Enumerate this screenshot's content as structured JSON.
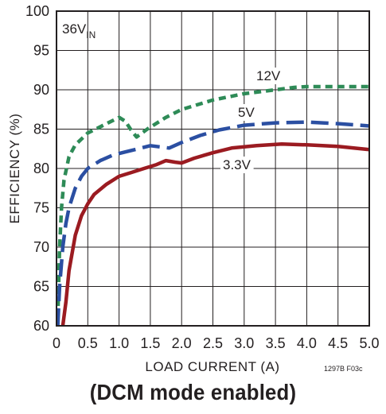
{
  "chart_data": {
    "type": "line",
    "title": "",
    "xlabel": "LOAD CURRENT (A)",
    "ylabel": "EFFICIENCY (%)",
    "xlim": [
      0,
      5.0
    ],
    "ylim": [
      60,
      100
    ],
    "xticks": [
      "0",
      "0.5",
      "1.0",
      "1.5",
      "2.0",
      "2.5",
      "3.0",
      "3.5",
      "4.0",
      "4.5",
      "5.0"
    ],
    "yticks": [
      "60",
      "65",
      "70",
      "75",
      "80",
      "85",
      "90",
      "95",
      "100"
    ],
    "grid": true,
    "annotation": {
      "main": "36V",
      "sub": "IN"
    },
    "figure_code": "1297B F03c",
    "series": [
      {
        "name": "12V",
        "color": "#2e8b57",
        "dash": "short",
        "points": [
          [
            0.02,
            61
          ],
          [
            0.05,
            70
          ],
          [
            0.08,
            75
          ],
          [
            0.12,
            78.5
          ],
          [
            0.2,
            81.5
          ],
          [
            0.3,
            83
          ],
          [
            0.5,
            84.5
          ],
          [
            0.75,
            85.5
          ],
          [
            1.0,
            86.5
          ],
          [
            1.1,
            86
          ],
          [
            1.2,
            84.8
          ],
          [
            1.28,
            84
          ],
          [
            1.45,
            85
          ],
          [
            1.75,
            86.5
          ],
          [
            2.0,
            87.5
          ],
          [
            2.5,
            88.7
          ],
          [
            3.0,
            89.5
          ],
          [
            3.5,
            90
          ],
          [
            3.8,
            90.3
          ],
          [
            4.0,
            90.4
          ],
          [
            4.5,
            90.4
          ],
          [
            5.0,
            90.4
          ]
        ]
      },
      {
        "name": "5V",
        "color": "#2b4fa2",
        "dash": "long",
        "points": [
          [
            0.02,
            60
          ],
          [
            0.05,
            65
          ],
          [
            0.1,
            70
          ],
          [
            0.15,
            73
          ],
          [
            0.2,
            75
          ],
          [
            0.3,
            77.5
          ],
          [
            0.4,
            79
          ],
          [
            0.5,
            80
          ],
          [
            0.7,
            81
          ],
          [
            0.9,
            81.7
          ],
          [
            1.1,
            82.1
          ],
          [
            1.3,
            82.5
          ],
          [
            1.5,
            82.9
          ],
          [
            1.7,
            82.7
          ],
          [
            1.8,
            82.6
          ],
          [
            2.0,
            83.3
          ],
          [
            2.3,
            84.2
          ],
          [
            2.6,
            84.9
          ],
          [
            3.0,
            85.5
          ],
          [
            3.5,
            85.8
          ],
          [
            4.0,
            85.9
          ],
          [
            4.5,
            85.7
          ],
          [
            5.0,
            85.4
          ]
        ]
      },
      {
        "name": "3.3V",
        "color": "#9b1b21",
        "dash": "solid",
        "points": [
          [
            0.1,
            60
          ],
          [
            0.15,
            63
          ],
          [
            0.2,
            67
          ],
          [
            0.3,
            71.5
          ],
          [
            0.4,
            74
          ],
          [
            0.5,
            75.5
          ],
          [
            0.6,
            76.7
          ],
          [
            0.8,
            78
          ],
          [
            1.0,
            79
          ],
          [
            1.2,
            79.5
          ],
          [
            1.4,
            80
          ],
          [
            1.6,
            80.5
          ],
          [
            1.75,
            81
          ],
          [
            1.9,
            80.8
          ],
          [
            2.0,
            80.7
          ],
          [
            2.2,
            81.3
          ],
          [
            2.5,
            82
          ],
          [
            2.8,
            82.6
          ],
          [
            3.2,
            82.9
          ],
          [
            3.6,
            83.1
          ],
          [
            4.0,
            83
          ],
          [
            4.5,
            82.8
          ],
          [
            5.0,
            82.4
          ]
        ]
      }
    ]
  },
  "caption": "(DCM mode enabled)"
}
